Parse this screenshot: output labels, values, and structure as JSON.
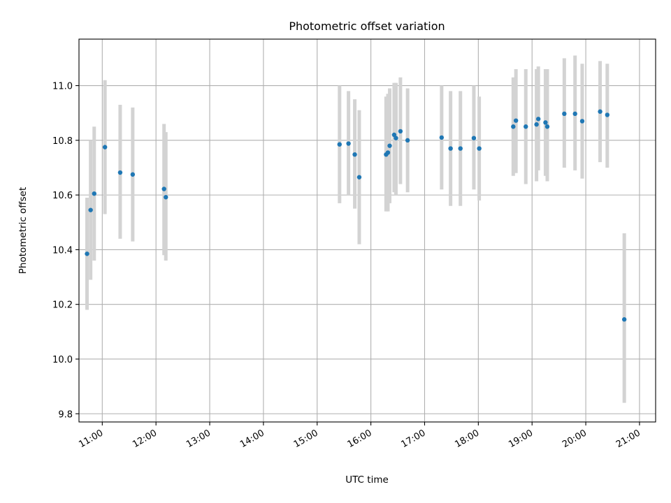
{
  "chart_data": {
    "type": "scatter",
    "title": "Photometric offset variation",
    "xlabel": "UTC time",
    "ylabel": "Photometric offset",
    "x_ticks": [
      "11:00",
      "12:00",
      "13:00",
      "14:00",
      "15:00",
      "16:00",
      "17:00",
      "18:00",
      "19:00",
      "20:00",
      "21:00"
    ],
    "y_ticks": [
      "9.8",
      "10.0",
      "10.2",
      "10.4",
      "10.6",
      "10.8",
      "11.0"
    ],
    "xlim": [
      "10:34",
      "21:18"
    ],
    "ylim": [
      9.77,
      11.17
    ],
    "grid": true,
    "point_color": "#1f77b4",
    "errorbar_color": "#d3d3d3",
    "points": [
      {
        "x": "10:43",
        "y": 10.385,
        "y_low": 10.18,
        "y_high": 10.59
      },
      {
        "x": "10:47",
        "y": 10.545,
        "y_low": 10.29,
        "y_high": 10.8
      },
      {
        "x": "10:51",
        "y": 10.605,
        "y_low": 10.36,
        "y_high": 10.85
      },
      {
        "x": "11:03",
        "y": 10.775,
        "y_low": 10.53,
        "y_high": 11.02
      },
      {
        "x": "11:20",
        "y": 10.682,
        "y_low": 10.44,
        "y_high": 10.93
      },
      {
        "x": "11:34",
        "y": 10.675,
        "y_low": 10.43,
        "y_high": 10.92
      },
      {
        "x": "12:09",
        "y": 10.622,
        "y_low": 10.38,
        "y_high": 10.86
      },
      {
        "x": "12:11",
        "y": 10.592,
        "y_low": 10.36,
        "y_high": 10.83
      },
      {
        "x": "15:25",
        "y": 10.785,
        "y_low": 10.57,
        "y_high": 11.0
      },
      {
        "x": "15:35",
        "y": 10.788,
        "y_low": 10.6,
        "y_high": 10.98
      },
      {
        "x": "15:42",
        "y": 10.748,
        "y_low": 10.55,
        "y_high": 10.95
      },
      {
        "x": "15:47",
        "y": 10.665,
        "y_low": 10.42,
        "y_high": 10.91
      },
      {
        "x": "16:17",
        "y": 10.748,
        "y_low": 10.54,
        "y_high": 10.96
      },
      {
        "x": "16:19",
        "y": 10.755,
        "y_low": 10.54,
        "y_high": 10.97
      },
      {
        "x": "16:21",
        "y": 10.78,
        "y_low": 10.57,
        "y_high": 10.99
      },
      {
        "x": "16:26",
        "y": 10.82,
        "y_low": 10.61,
        "y_high": 11.01
      },
      {
        "x": "16:28",
        "y": 10.808,
        "y_low": 10.6,
        "y_high": 11.01
      },
      {
        "x": "16:33",
        "y": 10.833,
        "y_low": 10.64,
        "y_high": 11.03
      },
      {
        "x": "16:41",
        "y": 10.8,
        "y_low": 10.61,
        "y_high": 10.99
      },
      {
        "x": "17:19",
        "y": 10.81,
        "y_low": 10.62,
        "y_high": 11.0
      },
      {
        "x": "17:29",
        "y": 10.77,
        "y_low": 10.56,
        "y_high": 10.98
      },
      {
        "x": "17:40",
        "y": 10.77,
        "y_low": 10.56,
        "y_high": 10.98
      },
      {
        "x": "17:55",
        "y": 10.808,
        "y_low": 10.62,
        "y_high": 11.0
      },
      {
        "x": "18:01",
        "y": 10.77,
        "y_low": 10.58,
        "y_high": 10.96
      },
      {
        "x": "18:39",
        "y": 10.85,
        "y_low": 10.67,
        "y_high": 11.03
      },
      {
        "x": "18:42",
        "y": 10.872,
        "y_low": 10.68,
        "y_high": 11.06
      },
      {
        "x": "18:53",
        "y": 10.85,
        "y_low": 10.64,
        "y_high": 11.06
      },
      {
        "x": "19:05",
        "y": 10.858,
        "y_low": 10.65,
        "y_high": 11.06
      },
      {
        "x": "19:07",
        "y": 10.878,
        "y_low": 10.69,
        "y_high": 11.07
      },
      {
        "x": "19:15",
        "y": 10.865,
        "y_low": 10.67,
        "y_high": 11.06
      },
      {
        "x": "19:17",
        "y": 10.85,
        "y_low": 10.65,
        "y_high": 11.06
      },
      {
        "x": "19:36",
        "y": 10.897,
        "y_low": 10.7,
        "y_high": 11.1
      },
      {
        "x": "19:48",
        "y": 10.897,
        "y_low": 10.69,
        "y_high": 11.11
      },
      {
        "x": "19:56",
        "y": 10.87,
        "y_low": 10.66,
        "y_high": 11.08
      },
      {
        "x": "20:16",
        "y": 10.905,
        "y_low": 10.72,
        "y_high": 11.09
      },
      {
        "x": "20:24",
        "y": 10.893,
        "y_low": 10.7,
        "y_high": 11.08
      },
      {
        "x": "20:43",
        "y": 10.145,
        "y_low": 9.84,
        "y_high": 10.46
      }
    ]
  }
}
